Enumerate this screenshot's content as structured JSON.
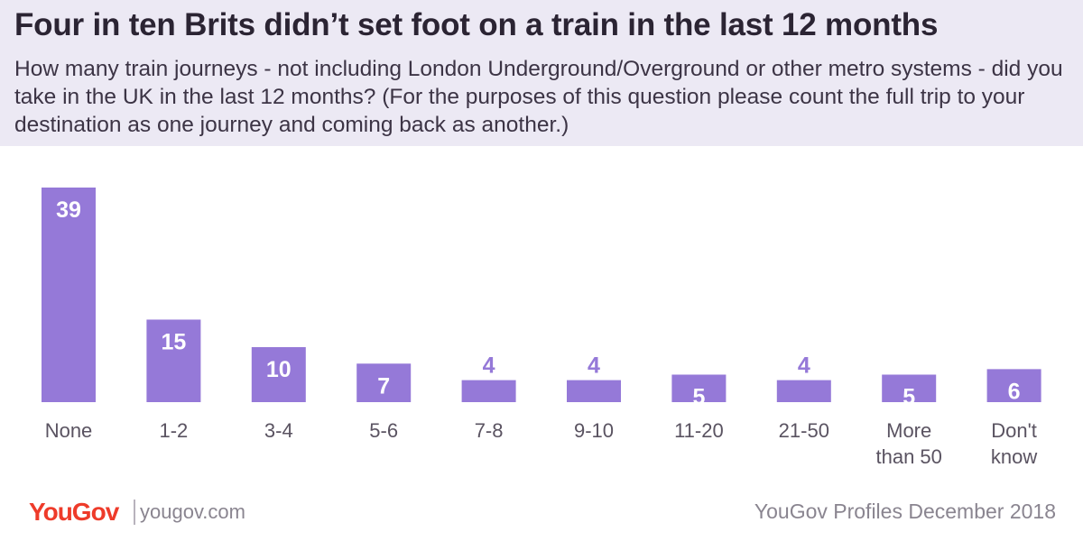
{
  "header": {
    "title": "Four in ten Brits didn’t set foot on a train in the last 12 months",
    "subtitle": "How many train journeys - not including London Underground/Overground or other metro systems - did you take in the UK in the last 12 months? (For the purposes of this question please count the full trip to your destination as one journey and coming back as another.)"
  },
  "footer": {
    "logo": "YouGov",
    "site": "yougov.com",
    "source": "YouGov Profiles December 2018"
  },
  "colors": {
    "bar": "#9579d8",
    "header_bg": "#ece9f4",
    "logo": "#ee3b2a"
  },
  "chart_data": {
    "type": "bar",
    "title": "Four in ten Brits didn’t set foot on a train in the last 12 months",
    "categories": [
      "None",
      "1-2",
      "3-4",
      "5-6",
      "7-8",
      "9-10",
      "11-20",
      "21-50",
      "More than 50",
      "Don't know"
    ],
    "category_lines": [
      [
        "None"
      ],
      [
        "1-2"
      ],
      [
        "3-4"
      ],
      [
        "5-6"
      ],
      [
        "7-8"
      ],
      [
        "9-10"
      ],
      [
        "11-20"
      ],
      [
        "21-50"
      ],
      [
        "More",
        "than 50"
      ],
      [
        "Don't",
        "know"
      ]
    ],
    "values": [
      39,
      15,
      10,
      7,
      4,
      4,
      5,
      4,
      5,
      6
    ],
    "xlabel": "",
    "ylabel": "",
    "ylim": [
      0,
      39
    ],
    "grid": false,
    "legend": "none"
  }
}
